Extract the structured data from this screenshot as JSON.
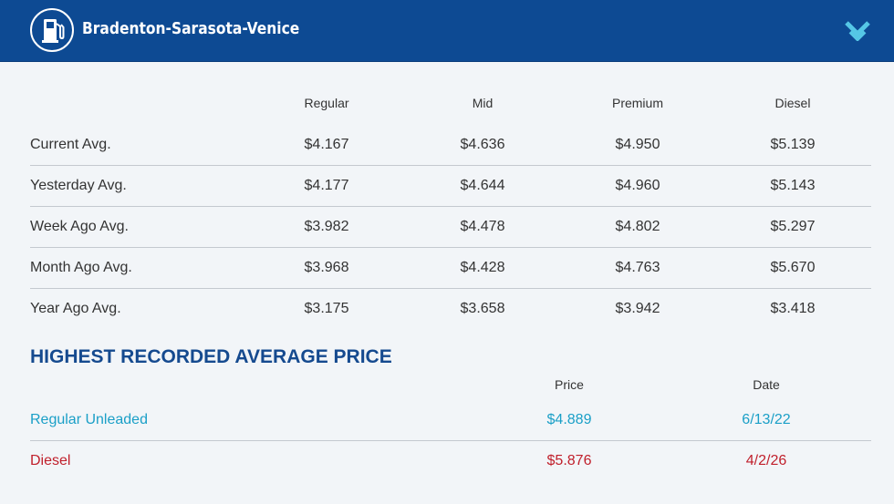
{
  "header": {
    "title": "Bradenton-Sarasota-Venice",
    "logo_icon": "gas-pump-icon",
    "expand_icon": "chevron-down-icon",
    "background_color": "#0d4a93"
  },
  "averages": {
    "columns": [
      "Regular",
      "Mid",
      "Premium",
      "Diesel"
    ],
    "rows": [
      {
        "label": "Current Avg.",
        "values": [
          "$4.167",
          "$4.636",
          "$4.950",
          "$5.139"
        ]
      },
      {
        "label": "Yesterday Avg.",
        "values": [
          "$4.177",
          "$4.644",
          "$4.960",
          "$5.143"
        ]
      },
      {
        "label": "Week Ago Avg.",
        "values": [
          "$3.982",
          "$4.478",
          "$4.802",
          "$5.297"
        ]
      },
      {
        "label": "Month Ago Avg.",
        "values": [
          "$3.968",
          "$4.428",
          "$4.763",
          "$5.670"
        ]
      },
      {
        "label": "Year Ago Avg.",
        "values": [
          "$3.175",
          "$3.658",
          "$3.942",
          "$3.418"
        ]
      }
    ]
  },
  "record": {
    "title": "HIGHEST RECORDED AVERAGE PRICE",
    "columns": [
      "Price",
      "Date"
    ],
    "rows": [
      {
        "label": "Regular Unleaded",
        "price": "$4.889",
        "date": "6/13/22",
        "color": "#1a9fc7"
      },
      {
        "label": "Diesel",
        "price": "$5.876",
        "date": "4/2/26",
        "color": "#c01f2b"
      }
    ]
  }
}
